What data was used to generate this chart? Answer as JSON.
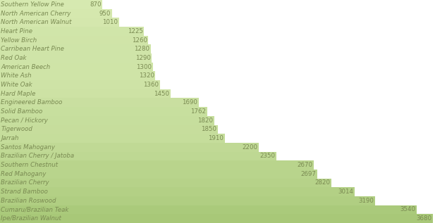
{
  "categories": [
    "Southern Yellow Pine",
    "North American Cherry",
    "North American Walnut",
    "Heart Pine",
    "Yellow Birch",
    "Carribean Heart Pine",
    "Red Oak",
    "American Beech",
    "White Ash",
    "White Oak",
    "Hard Maple",
    "Engineered Bamboo",
    "Solid Bamboo",
    "Pecan / Hickory",
    "Tigerwood",
    "Jarrah",
    "Santos Mahogany",
    "Brazilian Cherry / Jatoba",
    "Southern Chestnut",
    "Red Mahogany",
    "Brazilian Cherry",
    "Strand Bamboo",
    "Brazilian Roswood",
    "Cumaru/Brazilian Teak",
    "Ipe/Brazilian Walnut"
  ],
  "values": [
    870,
    950,
    1010,
    1225,
    1260,
    1280,
    1290,
    1300,
    1320,
    1360,
    1450,
    1690,
    1762,
    1820,
    1850,
    1910,
    2200,
    2350,
    2670,
    2697,
    2820,
    3014,
    3190,
    3540,
    3680
  ],
  "bar_color_light": "#d6e9b0",
  "bar_color_dark": "#a8c878",
  "text_color": "#7a8a52",
  "label_color": "#7a8a52",
  "value_color": "#7a8a52",
  "background_color": "#ffffff",
  "bar_height": 1.0,
  "xlim_max": 3800,
  "label_fontsize": 6.2,
  "value_fontsize": 6.2
}
